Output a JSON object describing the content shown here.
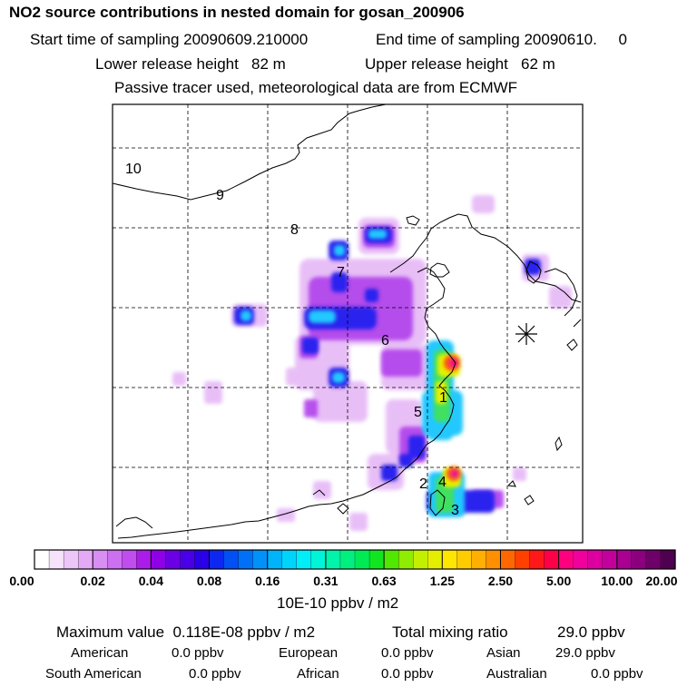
{
  "header": {
    "title": "NO2 source contributions in nested domain for gosan_200906",
    "start_label": "Start time of sampling 20090609.210000",
    "end_label": "End time of sampling 20090610.     0",
    "lower_label": "Lower release height   82 m",
    "upper_label": "Upper release height   62 m",
    "tracer_note": "Passive tracer used, meteorological data are from ECMWF"
  },
  "map": {
    "region_labels": [
      "10",
      "9",
      "8",
      "7",
      "6",
      "1",
      "5",
      "2",
      "4",
      "3"
    ]
  },
  "colorbar": {
    "tick_labels": [
      "0.00",
      "0.02",
      "0.04",
      "0.08",
      "0.16",
      "0.31",
      "0.63",
      "1.25",
      "2.50",
      "5.00",
      "10.00",
      "20.00"
    ],
    "colors": [
      "#ffffff",
      "#f6e3fb",
      "#edc6f8",
      "#e4aaf5",
      "#d88ef2",
      "#cc6ff0",
      "#c04ded",
      "#aa1ce8",
      "#8f00e6",
      "#6c00e5",
      "#4a00e6",
      "#2a00e8",
      "#0c28f0",
      "#0050f5",
      "#0070f8",
      "#0092fa",
      "#00b4fb",
      "#00d4fc",
      "#00eef8",
      "#00f4d8",
      "#00f4aa",
      "#00f080",
      "#00ea55",
      "#10e620",
      "#50e800",
      "#90ec00",
      "#c4f000",
      "#e6ee00",
      "#ffe600",
      "#ffcc00",
      "#ffb000",
      "#ff9000",
      "#ff6800",
      "#ff4000",
      "#ff1818",
      "#ff0048",
      "#ff0080",
      "#f0009c",
      "#dc00a0",
      "#c4009c",
      "#a80090",
      "#8c0080",
      "#6e006a",
      "#500050"
    ],
    "unit_label": "10E-10 ppbv / m2"
  },
  "footer": {
    "max_label": "Maximum value  0.118E-08 ppbv / m2",
    "total_label": "Total mixing ratio",
    "total_value": "29.0 ppbv",
    "sources": [
      {
        "name": "American",
        "value": "0.0 ppbv"
      },
      {
        "name": "European",
        "value": "0.0 ppbv"
      },
      {
        "name": "Asian",
        "value": "29.0 ppbv"
      },
      {
        "name": "South American",
        "value": "0.0 ppbv"
      },
      {
        "name": "African",
        "value": "0.0 ppbv"
      },
      {
        "name": "Australian",
        "value": "0.0 ppbv"
      }
    ]
  }
}
